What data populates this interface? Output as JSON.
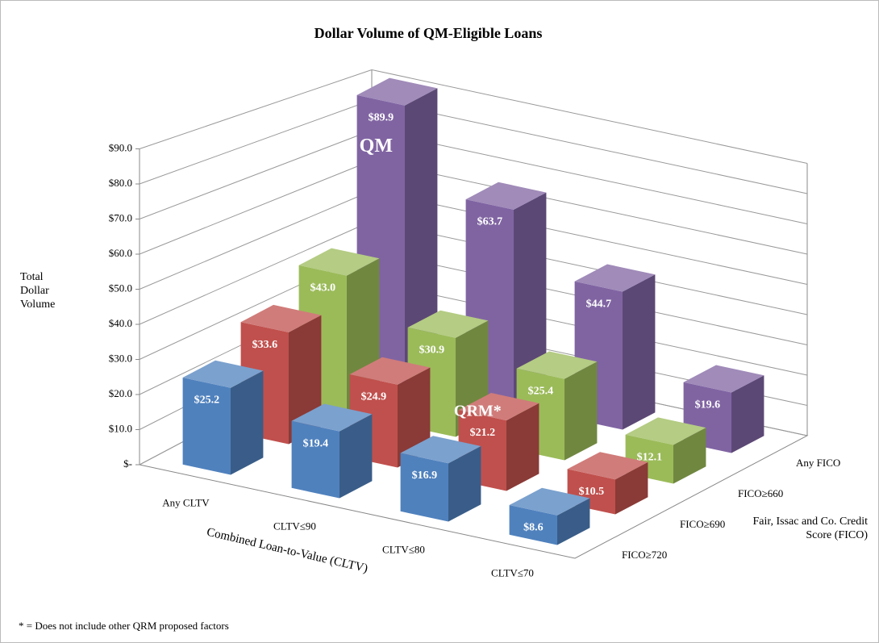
{
  "chart_data": {
    "type": "bar3d",
    "title": "Dollar Volume of QM-Eligible Loans",
    "y_label": "Total Dollar Volume",
    "x_label": "Combined Loan-to-Value (CLTV)",
    "z_label": "Fair, Issac and Co. Credit Score (FICO)",
    "categories": [
      "Any CLTV",
      "CLTV≤90",
      "CLTV≤80",
      "CLTV≤70"
    ],
    "series": [
      {
        "name": "Any FICO",
        "color": "#8064a2",
        "values": [
          89.9,
          63.7,
          44.7,
          19.6
        ],
        "value_labels": [
          "$89.9",
          "$63.7",
          "$44.7",
          "$19.6"
        ]
      },
      {
        "name": "FICO≥660",
        "color": "#9bbb59",
        "values": [
          43.0,
          30.9,
          25.4,
          12.1
        ],
        "value_labels": [
          "$43.0",
          "$30.9",
          "$25.4",
          "$12.1"
        ]
      },
      {
        "name": "FICO≥690",
        "color": "#c0504d",
        "values": [
          33.6,
          24.9,
          21.2,
          10.5
        ],
        "value_labels": [
          "$33.6",
          "$24.9",
          "$21.2",
          "$10.5"
        ]
      },
      {
        "name": "FICO≥720",
        "color": "#4f81bd",
        "values": [
          25.2,
          19.4,
          16.9,
          8.6
        ],
        "value_labels": [
          "$25.2",
          "$19.4",
          "$16.9",
          "$8.6"
        ]
      }
    ],
    "ylim": [
      0,
      90
    ],
    "yticks": [
      {
        "value": 0,
        "label": "$-"
      },
      {
        "value": 10,
        "label": "$10.0"
      },
      {
        "value": 20,
        "label": "$20.0"
      },
      {
        "value": 30,
        "label": "$30.0"
      },
      {
        "value": 40,
        "label": "$40.0"
      },
      {
        "value": 50,
        "label": "$50.0"
      },
      {
        "value": 60,
        "label": "$60.0"
      },
      {
        "value": 70,
        "label": "$70.0"
      },
      {
        "value": 80,
        "label": "$80.0"
      },
      {
        "value": 90,
        "label": "$90.0"
      }
    ],
    "grid": true,
    "annotations": [
      "QM",
      "QRM*"
    ],
    "footnote": "* = Does not include other QRM proposed factors"
  }
}
